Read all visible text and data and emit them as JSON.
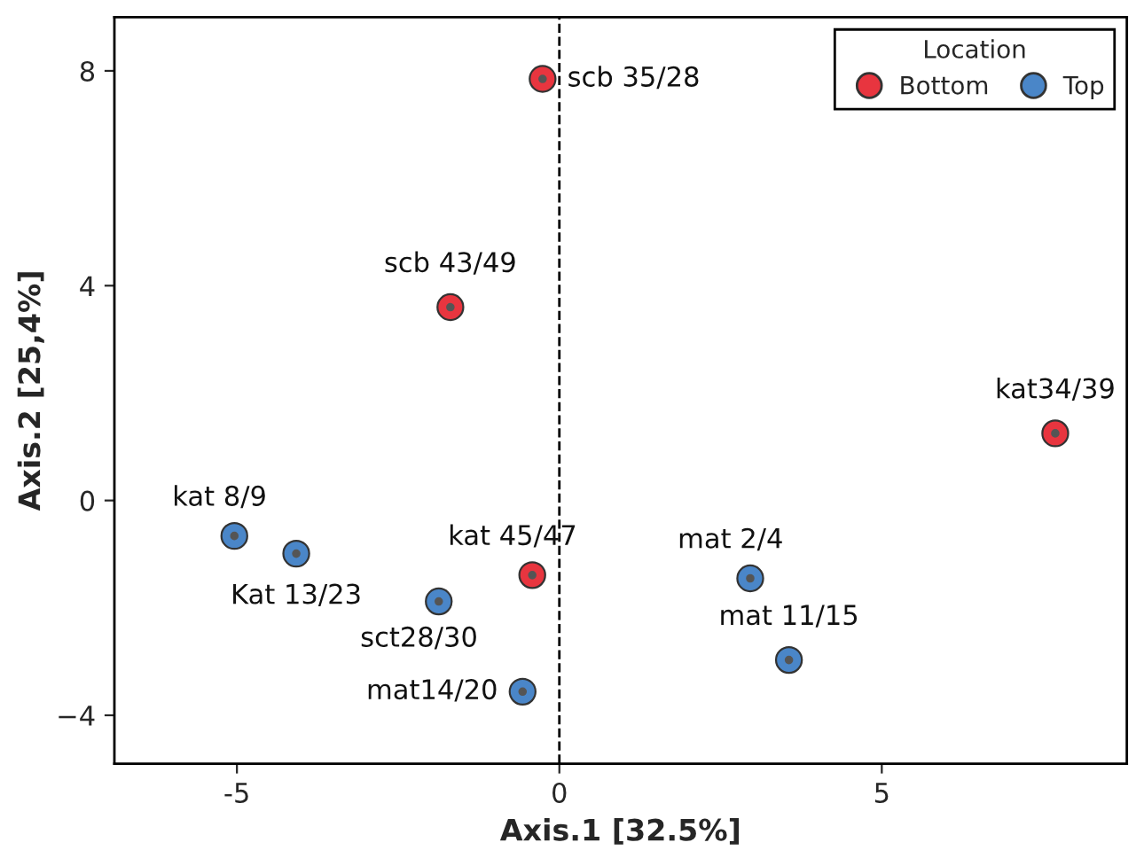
{
  "chart_data": {
    "type": "scatter",
    "xlabel": "Axis.1 [32.5%]",
    "ylabel": "Axis.2 [25,4%]",
    "legend_title": "Location",
    "legend": "top right",
    "marker": "circle",
    "grid": false,
    "xlim": [
      -6.9,
      8.8
    ],
    "ylim": [
      -4.9,
      9.0
    ],
    "xticks": [
      -5,
      0,
      5
    ],
    "yticks": [
      {
        "value": -4,
        "label": "−4"
      },
      0,
      4,
      8
    ],
    "series": [
      {
        "name": "Bottom",
        "color": "#e8353f",
        "x": [
          -0.26,
          -1.69,
          7.69,
          -0.42
        ],
        "values": [
          7.85,
          3.6,
          1.25,
          -1.39
        ]
      },
      {
        "name": "Top",
        "color": "#4a86c8",
        "x": [
          -5.04,
          -4.08,
          2.96,
          -1.87,
          3.56,
          -0.57
        ],
        "values": [
          -0.66,
          -0.99,
          -1.45,
          -1.88,
          -2.97,
          -3.56
        ]
      }
    ],
    "ref_lines": [
      {
        "axis": "x",
        "value": 0,
        "line_style": "dashed",
        "color": "#000000"
      }
    ],
    "annotations": [
      {
        "text": "scb 35/28",
        "x": -0.26,
        "y": 7.85
      },
      {
        "text": "scb 43/49",
        "x": -1.69,
        "y": 3.6
      },
      {
        "text": "kat34/39",
        "x": 7.69,
        "y": 1.25
      },
      {
        "text": "kat 45/47",
        "x": -0.42,
        "y": -1.39
      },
      {
        "text": "kat 8/9",
        "x": -5.04,
        "y": -0.66
      },
      {
        "text": "Kat 13/23",
        "x": -4.08,
        "y": -0.99
      },
      {
        "text": "mat 2/4",
        "x": 2.96,
        "y": -1.45
      },
      {
        "text": "sct28/30",
        "x": -1.87,
        "y": -1.88
      },
      {
        "text": "mat 11/15",
        "x": 3.56,
        "y": -2.97
      },
      {
        "text": "mat14/20",
        "x": -0.57,
        "y": -3.56
      }
    ]
  }
}
